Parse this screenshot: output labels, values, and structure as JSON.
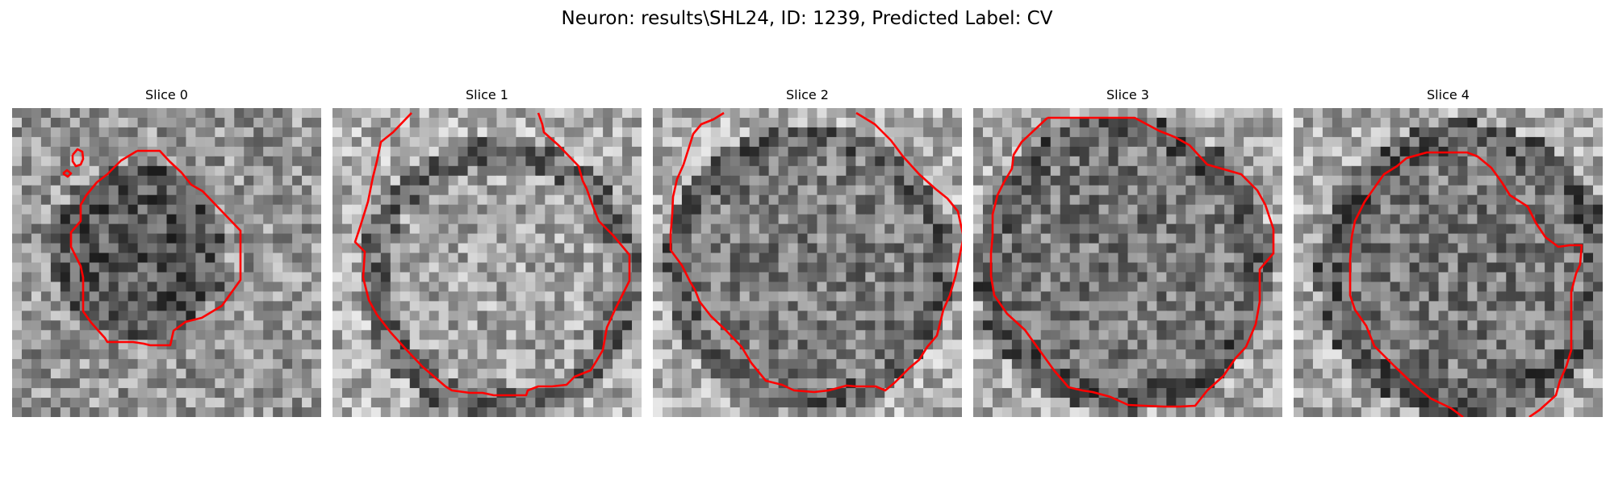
{
  "figure": {
    "title": "Neuron: results\\SHL24, ID: 1239, Predicted Label: CV"
  },
  "panels": [
    {
      "title": "Slice 0",
      "seed": 11,
      "interior": "dark"
    },
    {
      "title": "Slice 1",
      "seed": 23,
      "interior": "light"
    },
    {
      "title": "Slice 2",
      "seed": 37,
      "interior": "medium"
    },
    {
      "title": "Slice 3",
      "seed": 51,
      "interior": "mixed"
    },
    {
      "title": "Slice 4",
      "seed": 67,
      "interior": "mixed"
    }
  ],
  "style": {
    "contour_color": "#ff0000",
    "image_colormap": "gray"
  }
}
